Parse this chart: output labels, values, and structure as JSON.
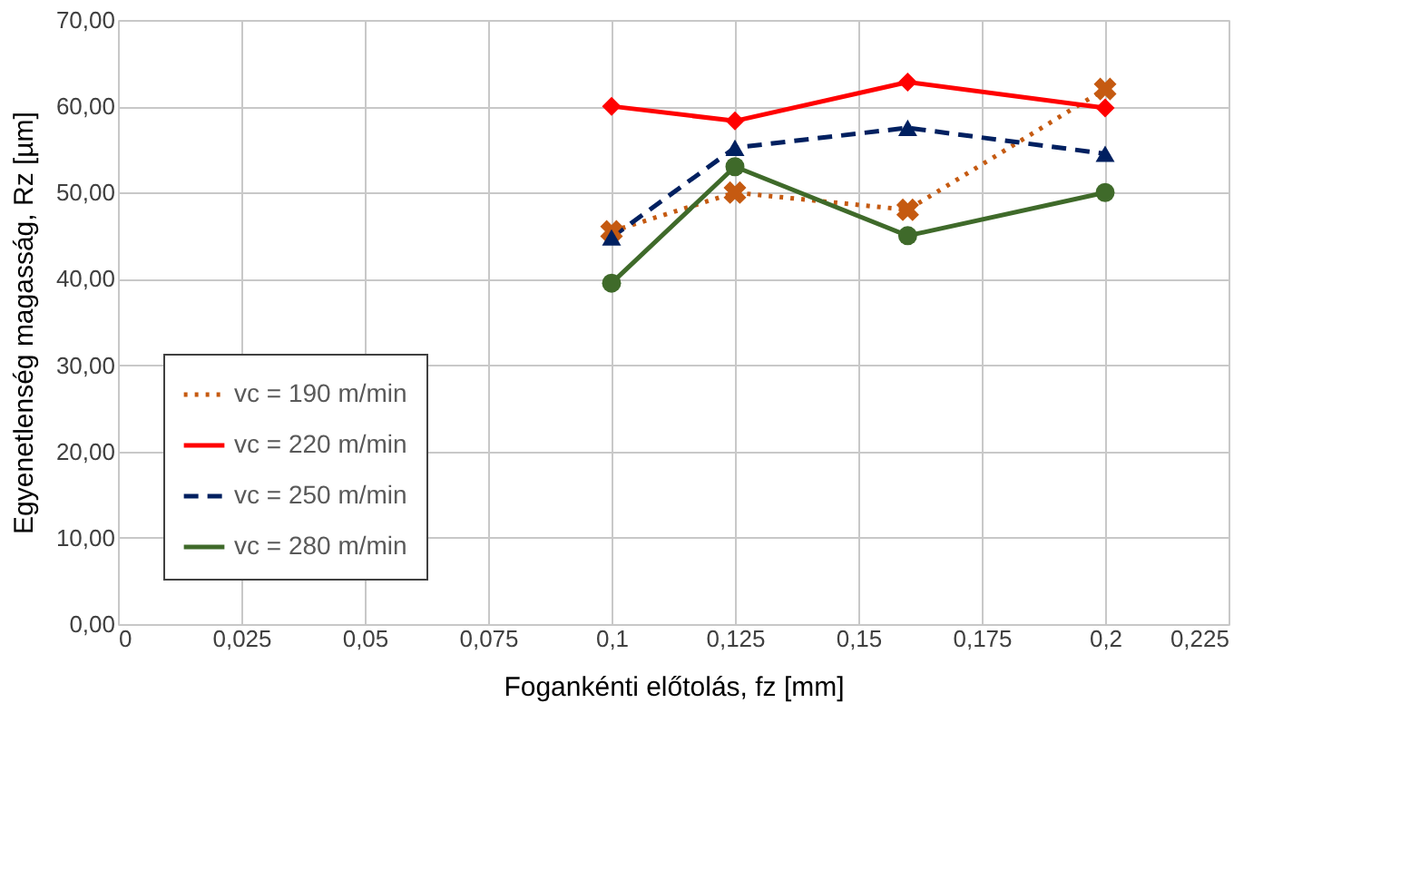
{
  "chart_data": {
    "type": "line",
    "xlabel": "Fogankénti előtolás, fz [mm]",
    "ylabel": "Egyenetlenség magasság, Rz [µm]",
    "x": [
      0.1,
      0.125,
      0.16,
      0.2
    ],
    "series": [
      {
        "name": "vc = 190 m/min",
        "color": "#c55a11",
        "values": [
          45.5,
          50,
          48,
          62
        ],
        "marker": "cross",
        "line_style": "dotted"
      },
      {
        "name": "vc = 220 m/min",
        "color": "#ff0000",
        "values": [
          60,
          58.3,
          62.8,
          59.8
        ],
        "marker": "diamond",
        "line_style": "solid"
      },
      {
        "name": "vc = 250 m/min",
        "color": "#002060",
        "values": [
          44.8,
          55.2,
          57.5,
          54.5
        ],
        "marker": "triangle",
        "line_style": "dashed"
      },
      {
        "name": "vc = 280 m/min",
        "color": "#3f6a2a",
        "values": [
          39.5,
          53,
          45,
          50
        ],
        "marker": "circle",
        "line_style": "solid"
      }
    ],
    "xlim": [
      0,
      0.225
    ],
    "xticks": [
      {
        "value": 0,
        "label": "0"
      },
      {
        "value": 0.025,
        "label": "0,025"
      },
      {
        "value": 0.05,
        "label": "0,05"
      },
      {
        "value": 0.075,
        "label": "0,075"
      },
      {
        "value": 0.1,
        "label": "0,1"
      },
      {
        "value": 0.125,
        "label": "0,125"
      },
      {
        "value": 0.15,
        "label": "0,15"
      },
      {
        "value": 0.175,
        "label": "0,175"
      },
      {
        "value": 0.2,
        "label": "0,2"
      },
      {
        "value": 0.225,
        "label": "0,225"
      }
    ],
    "ylim": [
      0,
      70
    ],
    "yticks": [
      {
        "value": 0,
        "label": "0,00"
      },
      {
        "value": 10,
        "label": "10,00"
      },
      {
        "value": 20,
        "label": "20,00"
      },
      {
        "value": 30,
        "label": "30,00"
      },
      {
        "value": 40,
        "label": "40,00"
      },
      {
        "value": 50,
        "label": "50,00"
      },
      {
        "value": 60,
        "label": "60,00"
      },
      {
        "value": 70,
        "label": "70,00"
      }
    ],
    "grid": true,
    "legend": "bottom left"
  }
}
